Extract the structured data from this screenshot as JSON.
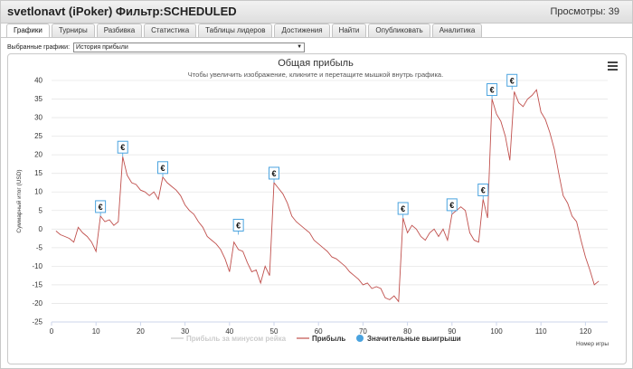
{
  "window": {
    "title": "svetlonavt (iPoker) Фильтр:SCHEDULED",
    "views": "Просмотры: 39"
  },
  "tabs": [
    {
      "label": "Графики",
      "active": true
    },
    {
      "label": "Турниры"
    },
    {
      "label": "Разбивка"
    },
    {
      "label": "Статистика"
    },
    {
      "label": "Таблицы лидеров"
    },
    {
      "label": "Достижения"
    },
    {
      "label": "Найти"
    },
    {
      "label": "Опубликовать"
    },
    {
      "label": "Аналитика"
    }
  ],
  "graph_select": {
    "label": "Выбранные графики:",
    "value": "История прибыли"
  },
  "colors": {
    "profit_line": "#c0504d",
    "rake_line": "#c9c9c9",
    "marker": "#4aa3df"
  },
  "chart_data": {
    "type": "line",
    "title": "Общая прибыль",
    "subtitle": "Чтобы увеличить изображение, кликните и перетащите мышкой внутрь графика.",
    "xlabel": "Номер игры",
    "ylabel": "Суммарный итог (USD)",
    "xlim": [
      0,
      125
    ],
    "ylim": [
      -25,
      40
    ],
    "xticks": [
      0,
      10,
      20,
      30,
      40,
      50,
      60,
      70,
      80,
      90,
      100,
      110,
      120
    ],
    "yticks": [
      40,
      35,
      30,
      25,
      20,
      15,
      10,
      5,
      0,
      -5,
      -10,
      -15,
      -20,
      -25
    ],
    "legend": [
      "Прибыль за минусом рейка",
      "Прибыль",
      "Значительные выигрыши"
    ],
    "marker_label": "€",
    "series": [
      {
        "name": "Прибыль",
        "points": [
          [
            1,
            -0.5
          ],
          [
            2,
            -1.5
          ],
          [
            3,
            -2
          ],
          [
            4,
            -2.5
          ],
          [
            5,
            -3.5
          ],
          [
            6,
            0.5
          ],
          [
            7,
            -1
          ],
          [
            8,
            -2
          ],
          [
            9,
            -3.5
          ],
          [
            10,
            -6
          ],
          [
            11,
            3.5
          ],
          [
            12,
            2
          ],
          [
            13,
            2.5
          ],
          [
            14,
            1
          ],
          [
            15,
            2
          ],
          [
            16,
            19.5
          ],
          [
            17,
            14.5
          ],
          [
            18,
            12.5
          ],
          [
            19,
            12
          ],
          [
            20,
            10.5
          ],
          [
            21,
            10
          ],
          [
            22,
            9
          ],
          [
            23,
            10
          ],
          [
            24,
            8
          ],
          [
            25,
            14
          ],
          [
            26,
            12.5
          ],
          [
            27,
            11.5
          ],
          [
            28,
            10.5
          ],
          [
            29,
            9
          ],
          [
            30,
            6.5
          ],
          [
            31,
            5
          ],
          [
            32,
            4
          ],
          [
            33,
            2
          ],
          [
            34,
            0.5
          ],
          [
            35,
            -2
          ],
          [
            36,
            -3
          ],
          [
            37,
            -4
          ],
          [
            38,
            -5.5
          ],
          [
            39,
            -8
          ],
          [
            40,
            -11.5
          ],
          [
            41,
            -3.5
          ],
          [
            42,
            -5.5
          ],
          [
            43,
            -6
          ],
          [
            44,
            -9
          ],
          [
            45,
            -11.5
          ],
          [
            46,
            -11
          ],
          [
            47,
            -14.5
          ],
          [
            48,
            -10
          ],
          [
            49,
            -12.5
          ],
          [
            50,
            12.5
          ],
          [
            51,
            11
          ],
          [
            52,
            9.5
          ],
          [
            53,
            7
          ],
          [
            54,
            3.5
          ],
          [
            55,
            2
          ],
          [
            56,
            1
          ],
          [
            57,
            0
          ],
          [
            58,
            -1
          ],
          [
            59,
            -3
          ],
          [
            60,
            -4
          ],
          [
            61,
            -5
          ],
          [
            62,
            -6
          ],
          [
            63,
            -7.5
          ],
          [
            64,
            -8
          ],
          [
            65,
            -9
          ],
          [
            66,
            -10
          ],
          [
            67,
            -11.5
          ],
          [
            68,
            -12.5
          ],
          [
            69,
            -13.5
          ],
          [
            70,
            -15
          ],
          [
            71,
            -14.5
          ],
          [
            72,
            -16
          ],
          [
            73,
            -15.5
          ],
          [
            74,
            -16
          ],
          [
            75,
            -18.5
          ],
          [
            76,
            -19
          ],
          [
            77,
            -18
          ],
          [
            78,
            -19.5
          ],
          [
            79,
            3
          ],
          [
            80,
            -1
          ],
          [
            81,
            1
          ],
          [
            82,
            0
          ],
          [
            83,
            -2
          ],
          [
            84,
            -3
          ],
          [
            85,
            -1
          ],
          [
            86,
            0
          ],
          [
            87,
            -2
          ],
          [
            88,
            0
          ],
          [
            89,
            -3
          ],
          [
            90,
            4
          ],
          [
            91,
            5
          ],
          [
            92,
            6
          ],
          [
            93,
            5
          ],
          [
            94,
            -1
          ],
          [
            95,
            -3
          ],
          [
            96,
            -3.5
          ],
          [
            97,
            8
          ],
          [
            98,
            3
          ],
          [
            99,
            35
          ],
          [
            100,
            31
          ],
          [
            101,
            29
          ],
          [
            102,
            25
          ],
          [
            103,
            18.5
          ],
          [
            104,
            37
          ],
          [
            105,
            34
          ],
          [
            106,
            33
          ],
          [
            107,
            35
          ],
          [
            108,
            36
          ],
          [
            109,
            37.5
          ],
          [
            110,
            31.5
          ],
          [
            111,
            29.5
          ],
          [
            112,
            26
          ],
          [
            113,
            21.5
          ],
          [
            114,
            15
          ],
          [
            115,
            9
          ],
          [
            116,
            7
          ],
          [
            117,
            3.5
          ],
          [
            118,
            2
          ],
          [
            119,
            -3
          ],
          [
            120,
            -7.5
          ],
          [
            121,
            -11
          ],
          [
            122,
            -15
          ],
          [
            123,
            -14
          ]
        ]
      },
      {
        "name": "Прибыль за минусом рейка",
        "hidden": true,
        "points": []
      }
    ],
    "big_wins": [
      [
        11,
        3.5
      ],
      [
        16,
        19.5
      ],
      [
        25,
        14
      ],
      [
        42,
        -1.5
      ],
      [
        50,
        12.5
      ],
      [
        79,
        3
      ],
      [
        90,
        4
      ],
      [
        97,
        8
      ],
      [
        99,
        35
      ],
      [
        103.5,
        37.5
      ]
    ]
  }
}
